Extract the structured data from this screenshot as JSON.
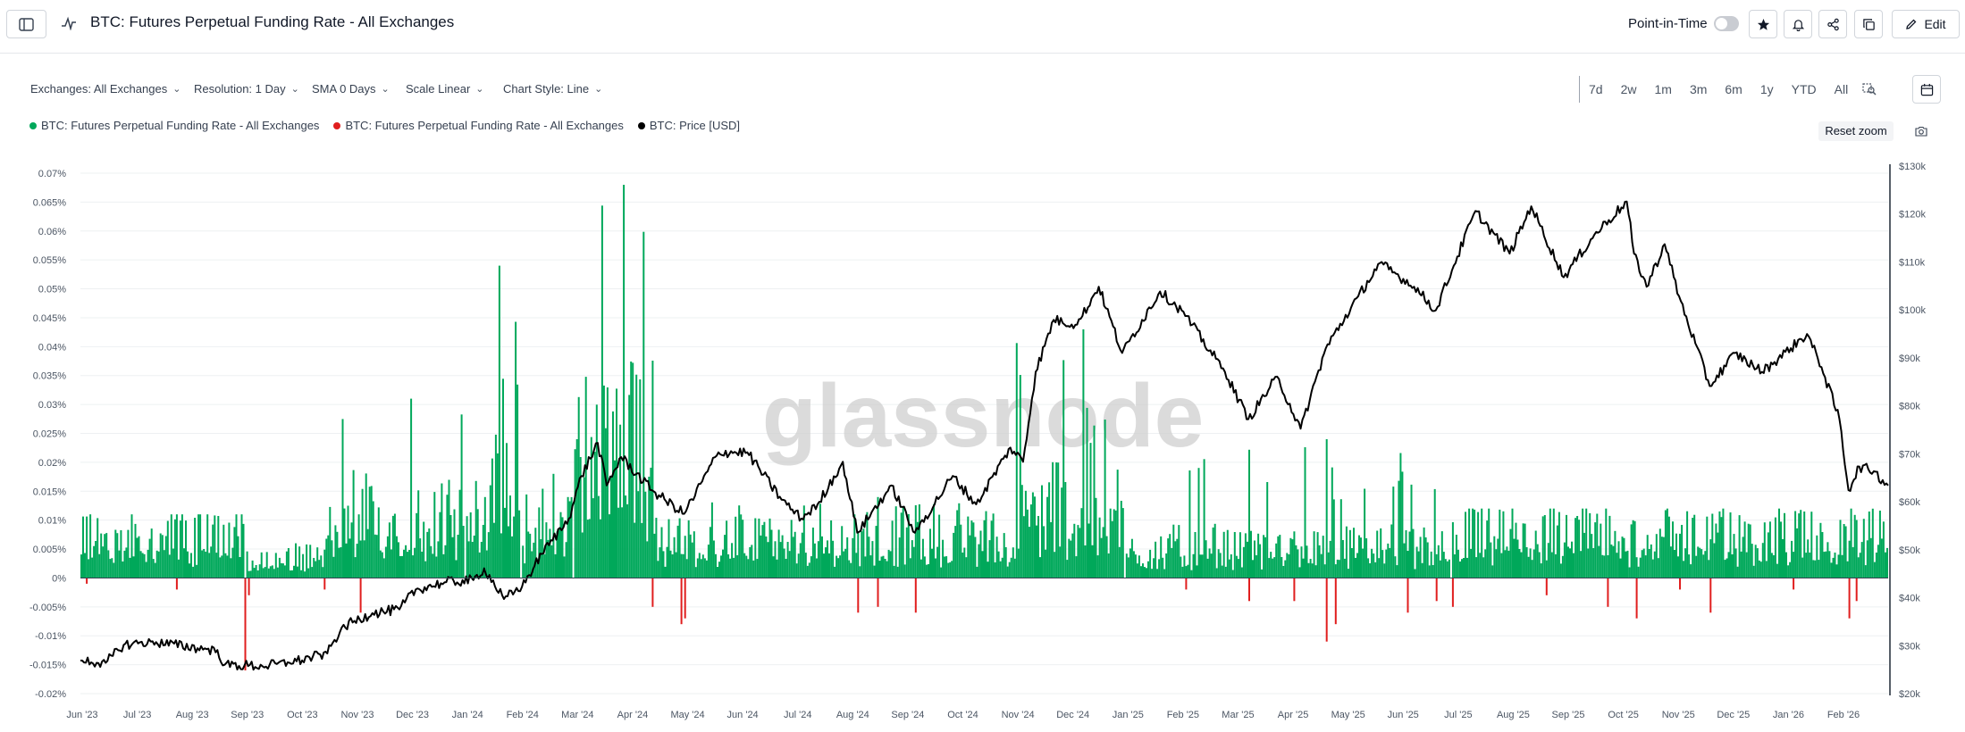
{
  "header": {
    "title": "BTC: Futures Perpetual Funding Rate - All Exchanges",
    "point_in_time_label": "Point-in-Time",
    "point_in_time_enabled": false,
    "edit_label": "Edit"
  },
  "filters": [
    {
      "label": "Exchanges: All Exchanges"
    },
    {
      "label": "Resolution: 1 Day"
    },
    {
      "label": "SMA 0 Days"
    },
    {
      "label": "Scale Linear"
    },
    {
      "label": "Chart Style: Line"
    }
  ],
  "ranges": [
    "7d",
    "2w",
    "1m",
    "3m",
    "6m",
    "1y",
    "YTD",
    "All"
  ],
  "reset_zoom_label": "Reset zoom",
  "watermark": "glassnode",
  "colors": {
    "positive": "#00a85a",
    "negative": "#e01e1e",
    "price": "#000000",
    "grid": "#eef0f2"
  },
  "chart_data": {
    "type": "bar",
    "legend": [
      {
        "name": "BTC: Futures Perpetual Funding Rate - All Exchanges",
        "color": "#00a85a"
      },
      {
        "name": "BTC: Futures Perpetual Funding Rate - All Exchanges",
        "color": "#e01e1e"
      },
      {
        "name": "BTC: Price [USD]",
        "color": "#000000"
      }
    ],
    "legend_position": "top-left",
    "grid": true,
    "x_ticks": [
      "Jun '23",
      "Jul '23",
      "Aug '23",
      "Sep '23",
      "Oct '23",
      "Nov '23",
      "Dec '23",
      "Jan '24",
      "Feb '24",
      "Mar '24",
      "Apr '24",
      "May '24",
      "Jun '24",
      "Jul '24",
      "Aug '24",
      "Sep '24",
      "Oct '24",
      "Nov '24",
      "Dec '24",
      "Jan '25",
      "Feb '25",
      "Mar '25",
      "Apr '25",
      "May '25",
      "Jun '25",
      "Jul '25",
      "Aug '25",
      "Sep '25",
      "Oct '25",
      "Nov '25",
      "Dec '25",
      "Jan '26",
      "Feb '26"
    ],
    "x_range": [
      "2023-06-01",
      "2026-02-28"
    ],
    "y_left": {
      "ylim": [
        -0.02,
        0.07
      ],
      "ticks": [
        "0.07%",
        "0.065%",
        "0.06%",
        "0.055%",
        "0.05%",
        "0.045%",
        "0.04%",
        "0.035%",
        "0.03%",
        "0.025%",
        "0.02%",
        "0.015%",
        "0.01%",
        "0.005%",
        "0%",
        "-0.005%",
        "-0.01%",
        "-0.015%",
        "-0.02%"
      ],
      "unit": "%"
    },
    "y_right": {
      "ylim": [
        20000,
        130000
      ],
      "ticks": [
        "$130k",
        "$120k",
        "$110k",
        "$100k",
        "$90k",
        "$80k",
        "$70k",
        "$60k",
        "$50k",
        "$40k",
        "$30k",
        "$20k"
      ]
    },
    "funding_rate_segments": [
      {
        "start": "2023-06-01",
        "end": "2023-08-31",
        "typical": 0.007,
        "peak": 0.011
      },
      {
        "start": "2023-09-01",
        "end": "2023-10-15",
        "typical": 0.003,
        "peak": 0.006
      },
      {
        "start": "2023-10-15",
        "end": "2023-12-31",
        "typical": 0.01,
        "peak": 0.031
      },
      {
        "start": "2024-01-01",
        "end": "2024-01-31",
        "typical": 0.013,
        "peak": 0.054
      },
      {
        "start": "2024-02-01",
        "end": "2024-02-29",
        "typical": 0.009,
        "peak": 0.018
      },
      {
        "start": "2024-03-01",
        "end": "2024-04-15",
        "typical": 0.022,
        "peak": 0.068
      },
      {
        "start": "2024-04-15",
        "end": "2024-11-01",
        "typical": 0.006,
        "peak": 0.014
      },
      {
        "start": "2024-11-01",
        "end": "2024-12-31",
        "typical": 0.012,
        "peak": 0.043
      },
      {
        "start": "2025-01-01",
        "end": "2025-06-30",
        "typical": 0.005,
        "peak": 0.024
      },
      {
        "start": "2025-07-01",
        "end": "2026-02-28",
        "typical": 0.007,
        "peak": 0.012
      }
    ],
    "funding_rate_negative_spikes": [
      {
        "date": "2023-06-04",
        "value": -0.001
      },
      {
        "date": "2023-07-24",
        "value": -0.002
      },
      {
        "date": "2023-08-31",
        "value": -0.016
      },
      {
        "date": "2023-09-02",
        "value": -0.003
      },
      {
        "date": "2023-10-14",
        "value": -0.002
      },
      {
        "date": "2023-11-03",
        "value": -0.006
      },
      {
        "date": "2024-04-13",
        "value": -0.005
      },
      {
        "date": "2024-04-29",
        "value": -0.008
      },
      {
        "date": "2024-05-01",
        "value": -0.007
      },
      {
        "date": "2024-08-05",
        "value": -0.006
      },
      {
        "date": "2024-08-16",
        "value": -0.005
      },
      {
        "date": "2024-09-06",
        "value": -0.006
      },
      {
        "date": "2025-02-03",
        "value": -0.002
      },
      {
        "date": "2025-03-10",
        "value": -0.004
      },
      {
        "date": "2025-04-04",
        "value": -0.004
      },
      {
        "date": "2025-04-22",
        "value": -0.011
      },
      {
        "date": "2025-04-27",
        "value": -0.008
      },
      {
        "date": "2025-06-06",
        "value": -0.006
      },
      {
        "date": "2025-06-22",
        "value": -0.004
      },
      {
        "date": "2025-07-01",
        "value": -0.005
      },
      {
        "date": "2025-08-22",
        "value": -0.003
      },
      {
        "date": "2025-09-25",
        "value": -0.005
      },
      {
        "date": "2025-10-11",
        "value": -0.007
      },
      {
        "date": "2025-11-04",
        "value": -0.002
      },
      {
        "date": "2025-11-21",
        "value": -0.006
      },
      {
        "date": "2026-01-06",
        "value": -0.002
      },
      {
        "date": "2026-02-06",
        "value": -0.007
      },
      {
        "date": "2026-02-10",
        "value": -0.004
      }
    ],
    "price_series": {
      "name": "BTC: Price [USD]",
      "x": [
        "2023-06-01",
        "2023-06-15",
        "2023-06-25",
        "2023-07-10",
        "2023-08-10",
        "2023-08-16",
        "2023-08-20",
        "2023-09-10",
        "2023-09-25",
        "2023-10-16",
        "2023-10-24",
        "2023-11-10",
        "2023-11-25",
        "2023-12-04",
        "2023-12-20",
        "2024-01-05",
        "2024-01-11",
        "2024-01-22",
        "2024-02-01",
        "2024-02-12",
        "2024-02-27",
        "2024-03-05",
        "2024-03-14",
        "2024-03-19",
        "2024-03-27",
        "2024-04-13",
        "2024-05-01",
        "2024-05-20",
        "2024-06-05",
        "2024-06-24",
        "2024-07-05",
        "2024-07-14",
        "2024-07-28",
        "2024-08-05",
        "2024-08-24",
        "2024-09-06",
        "2024-09-27",
        "2024-10-10",
        "2024-10-29",
        "2024-11-05",
        "2024-11-12",
        "2024-11-22",
        "2024-12-05",
        "2024-12-17",
        "2024-12-30",
        "2025-01-20",
        "2025-02-01",
        "2025-02-25",
        "2025-03-10",
        "2025-03-26",
        "2025-04-08",
        "2025-04-22",
        "2025-05-10",
        "2025-05-22",
        "2025-06-10",
        "2025-06-22",
        "2025-07-14",
        "2025-08-02",
        "2025-08-14",
        "2025-09-01",
        "2025-09-18",
        "2025-10-06",
        "2025-10-10",
        "2025-10-17",
        "2025-10-27",
        "2025-11-04",
        "2025-11-21",
        "2025-12-05",
        "2025-12-20",
        "2026-01-05",
        "2026-01-14",
        "2026-01-22",
        "2026-02-01",
        "2026-02-06",
        "2026-02-12",
        "2026-02-20",
        "2026-02-28"
      ],
      "y": [
        27000,
        26500,
        30300,
        31000,
        29400,
        29200,
        26100,
        25800,
        26500,
        28500,
        34000,
        37000,
        37800,
        42000,
        43500,
        44000,
        46500,
        40000,
        42600,
        49500,
        57000,
        66000,
        73000,
        64000,
        70000,
        63000,
        58000,
        71000,
        71000,
        61000,
        57000,
        60000,
        69000,
        54000,
        64000,
        54000,
        66000,
        60000,
        72000,
        69000,
        88000,
        99000,
        98000,
        106000,
        92000,
        105000,
        101000,
        88000,
        78000,
        87000,
        76000,
        93000,
        104000,
        111000,
        106000,
        101000,
        122000,
        113000,
        123000,
        108000,
        117000,
        124000,
        113000,
        106000,
        115000,
        104000,
        85000,
        92000,
        88000,
        93000,
        96000,
        89000,
        78000,
        63000,
        68000,
        67000,
        64000
      ]
    }
  }
}
